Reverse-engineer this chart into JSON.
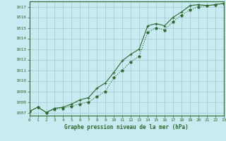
{
  "title": "Graphe pression niveau de la mer (hPa)",
  "x_values": [
    0,
    1,
    2,
    3,
    4,
    5,
    6,
    7,
    8,
    9,
    10,
    11,
    12,
    13,
    14,
    15,
    16,
    17,
    18,
    19,
    20,
    21,
    22,
    23
  ],
  "line1_y": [
    1007.1,
    1007.5,
    1007.0,
    1007.4,
    1007.5,
    1007.8,
    1008.2,
    1008.4,
    1009.3,
    1009.8,
    1010.8,
    1011.9,
    1012.5,
    1013.0,
    1015.2,
    1015.4,
    1015.2,
    1016.0,
    1016.5,
    1017.1,
    1017.2,
    1017.1,
    1017.2,
    1017.3
  ],
  "line2_y": [
    1007.1,
    1007.5,
    1007.0,
    1007.3,
    1007.4,
    1007.6,
    1007.8,
    1008.0,
    1008.5,
    1009.0,
    1010.3,
    1011.0,
    1011.8,
    1012.3,
    1014.6,
    1015.0,
    1014.8,
    1015.6,
    1016.2,
    1016.7,
    1017.0,
    1017.1,
    1017.2,
    1017.3
  ],
  "ylim_min": 1006.7,
  "ylim_max": 1017.5,
  "yticks": [
    1007,
    1008,
    1009,
    1010,
    1011,
    1012,
    1013,
    1014,
    1015,
    1016,
    1017
  ],
  "xlim_min": 0,
  "xlim_max": 23,
  "line_color": "#2d6a2d",
  "bg_color": "#c8eaf0",
  "grid_color": "#9ecad4",
  "text_color": "#2d6a2d",
  "marker1": "+",
  "marker2": "*",
  "marker_size1": 3,
  "marker_size2": 3,
  "linewidth": 0.8
}
